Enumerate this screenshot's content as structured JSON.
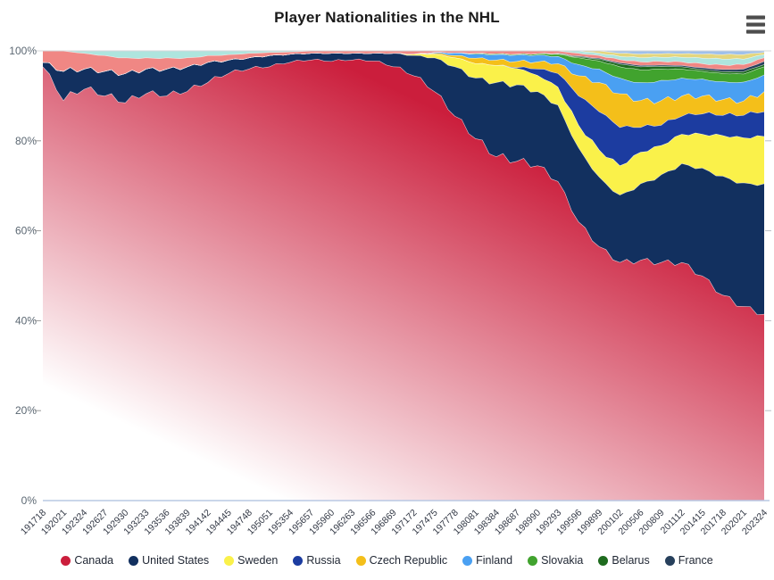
{
  "title": "Player Nationalities in the NHL",
  "export_menu": {
    "icon": "hamburger-menu-icon"
  },
  "chart_data": {
    "type": "area",
    "stacking": "percent",
    "title": "Player Nationalities in the NHL",
    "xlabel": "",
    "ylabel": "",
    "ylim": [
      0,
      100
    ],
    "grid": false,
    "legend_position": "bottom",
    "ytick_labels": [
      "0%",
      "20%",
      "40%",
      "60%",
      "80%",
      "100%"
    ],
    "categories": [
      "191718",
      "192021",
      "192324",
      "192627",
      "192930",
      "193233",
      "193536",
      "193839",
      "194142",
      "194445",
      "194748",
      "195051",
      "195354",
      "195657",
      "195960",
      "196263",
      "196566",
      "196869",
      "197172",
      "197475",
      "197778",
      "198081",
      "198384",
      "198687",
      "198990",
      "199293",
      "199596",
      "199899",
      "200102",
      "200506",
      "200809",
      "201112",
      "201415",
      "201718",
      "202021",
      "202324"
    ],
    "series": [
      {
        "name": "Canada",
        "color": "#cb1e3c",
        "in_legend": true,
        "values": [
          96.5,
          89,
          91.5,
          90,
          88.5,
          90.5,
          90,
          91,
          93,
          95,
          96,
          96.5,
          97.5,
          98,
          97.7,
          98,
          97.8,
          96.5,
          94.5,
          91,
          85.5,
          80.5,
          76.5,
          75.5,
          74.5,
          71,
          62,
          56.5,
          53,
          53.5,
          53,
          53,
          50,
          45.7,
          43.2,
          41.5
        ]
      },
      {
        "name": "United States",
        "color": "#12305f",
        "in_legend": true,
        "values": [
          1,
          6.5,
          4.5,
          5.5,
          6.5,
          5.5,
          6,
          5.5,
          4.5,
          3,
          2.5,
          2.5,
          1.8,
          1.5,
          1.8,
          1.5,
          1.7,
          3,
          4.5,
          7.5,
          11,
          13.5,
          16.5,
          17,
          16.5,
          17,
          16.5,
          15.5,
          15,
          17,
          19.5,
          22,
          24,
          26.5,
          27.5,
          29
        ]
      },
      {
        "name": "Sweden",
        "color": "#faf14a",
        "in_legend": true,
        "values": [
          0,
          0,
          0,
          0,
          0,
          0,
          0,
          0,
          0,
          0,
          0,
          0,
          0,
          0,
          0,
          0,
          0,
          0,
          0.3,
          0.8,
          2,
          3.2,
          3.8,
          3.6,
          3.6,
          4,
          5,
          6,
          6.5,
          7,
          6.5,
          6.5,
          7.5,
          9,
          10,
          10.5
        ]
      },
      {
        "name": "Russia",
        "color": "#1c3ca0",
        "in_legend": true,
        "values": [
          0,
          0,
          0,
          0,
          0,
          0,
          0,
          0,
          0,
          0,
          0,
          0,
          0,
          0,
          0,
          0,
          0,
          0,
          0,
          0,
          0,
          0,
          0,
          0.2,
          1.4,
          3,
          6.5,
          8.5,
          8.5,
          5.5,
          4.5,
          4,
          4.5,
          4.5,
          5,
          5.5
        ]
      },
      {
        "name": "Czech Republic",
        "color": "#f4bf1a",
        "in_legend": true,
        "values": [
          0,
          0,
          0,
          0,
          0,
          0,
          0,
          0,
          0,
          0,
          0,
          0,
          0,
          0,
          0,
          0,
          0,
          0,
          0,
          0.2,
          0.5,
          1.2,
          1.2,
          1.4,
          1.6,
          2.2,
          4.5,
          6.5,
          7.5,
          6,
          5.5,
          4.5,
          4,
          3.5,
          3.2,
          4.5
        ]
      },
      {
        "name": "Finland",
        "color": "#4aa0f2",
        "in_legend": true,
        "values": [
          0,
          0,
          0,
          0,
          0,
          0,
          0,
          0,
          0,
          0,
          0,
          0,
          0,
          0,
          0,
          0,
          0,
          0,
          0,
          0.2,
          0.6,
          0.9,
          1.2,
          1.4,
          1.5,
          1.6,
          2.5,
          3,
          3.5,
          4,
          4.5,
          4,
          3.8,
          4,
          4.2,
          3.7
        ]
      },
      {
        "name": "Slovakia",
        "color": "#41a32e",
        "in_legend": true,
        "values": [
          0,
          0,
          0,
          0,
          0,
          0,
          0,
          0,
          0,
          0,
          0,
          0,
          0,
          0,
          0,
          0,
          0,
          0,
          0,
          0,
          0,
          0.2,
          0.2,
          0.2,
          0.3,
          0.5,
          1.5,
          1.8,
          2.5,
          2.8,
          2.5,
          2,
          1.7,
          1.8,
          1.8,
          1.8
        ]
      },
      {
        "name": "Belarus",
        "color": "#1e6b1e",
        "in_legend": true,
        "values": [
          0,
          0,
          0,
          0,
          0,
          0,
          0,
          0,
          0,
          0,
          0,
          0,
          0,
          0,
          0,
          0,
          0,
          0,
          0,
          0,
          0,
          0,
          0,
          0,
          0,
          0.1,
          0.2,
          0.4,
          0.6,
          0.7,
          0.6,
          0.5,
          0.4,
          0.4,
          0.5,
          0.5
        ]
      },
      {
        "name": "France",
        "color": "#27405c",
        "in_legend": true,
        "values": [
          0,
          0,
          0,
          0,
          0,
          0,
          0,
          0,
          0,
          0,
          0,
          0,
          0,
          0,
          0,
          0,
          0,
          0,
          0,
          0,
          0,
          0,
          0,
          0,
          0,
          0.1,
          0.2,
          0.2,
          0.3,
          0.3,
          0.3,
          0.3,
          0.4,
          0.5,
          0.6,
          0.7
        ]
      },
      {
        "name": "other-1",
        "color": "#f08784",
        "in_legend": false,
        "values": [
          2.5,
          4.5,
          3.5,
          3.5,
          3.5,
          2.5,
          2.5,
          2,
          1.5,
          1.2,
          1,
          0.7,
          0.5,
          0.5,
          0.5,
          0.5,
          0.5,
          0.5,
          0.7,
          0.3,
          0.4,
          0.5,
          0.6,
          0.7,
          0.6,
          0.5,
          0.6,
          0.6,
          0.7,
          0.8,
          0.8,
          0.8,
          0.9,
          1,
          1,
          0.8
        ]
      },
      {
        "name": "other-2",
        "color": "#aee5de",
        "in_legend": false,
        "values": [
          0,
          0,
          0.5,
          1,
          1.5,
          1.5,
          1.5,
          1.5,
          1,
          0.8,
          0.5,
          0.3,
          0.2,
          0,
          0,
          0,
          0,
          0,
          0,
          0,
          0,
          0,
          0,
          0,
          0,
          0,
          0.5,
          0.5,
          0.7,
          0.9,
          0.9,
          1,
          1.2,
          1.3,
          1.2,
          0.7
        ]
      },
      {
        "name": "other-3",
        "color": "#e4d67e",
        "in_legend": false,
        "values": [
          0,
          0,
          0,
          0,
          0,
          0,
          0,
          0,
          0,
          0,
          0,
          0,
          0,
          0,
          0,
          0,
          0,
          0,
          0,
          0,
          0,
          0,
          0,
          0,
          0,
          0,
          0,
          0.5,
          0.7,
          0.8,
          0.8,
          0.8,
          0.9,
          1,
          1,
          0.5
        ]
      },
      {
        "name": "other-4",
        "color": "#9fc0ea",
        "in_legend": false,
        "values": [
          0,
          0,
          0,
          0,
          0,
          0,
          0,
          0,
          0,
          0,
          0,
          0,
          0,
          0,
          0,
          0,
          0,
          0,
          0,
          0,
          0,
          0,
          0,
          0,
          0,
          0,
          0,
          0,
          0.5,
          0.7,
          0.6,
          0.6,
          0.7,
          0.8,
          0.8,
          0.3
        ]
      }
    ]
  }
}
